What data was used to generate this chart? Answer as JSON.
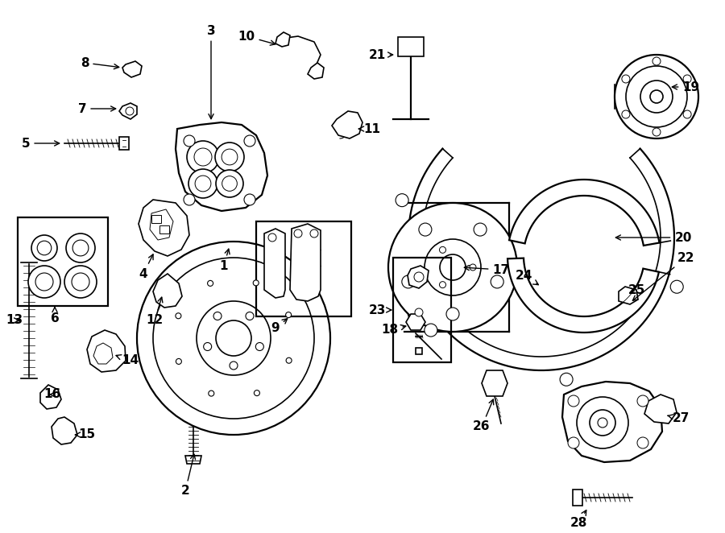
{
  "bg_color": "#ffffff",
  "line_color": "#000000",
  "text_color": "#000000",
  "fig_width": 9.0,
  "fig_height": 6.62,
  "dpi": 100
}
